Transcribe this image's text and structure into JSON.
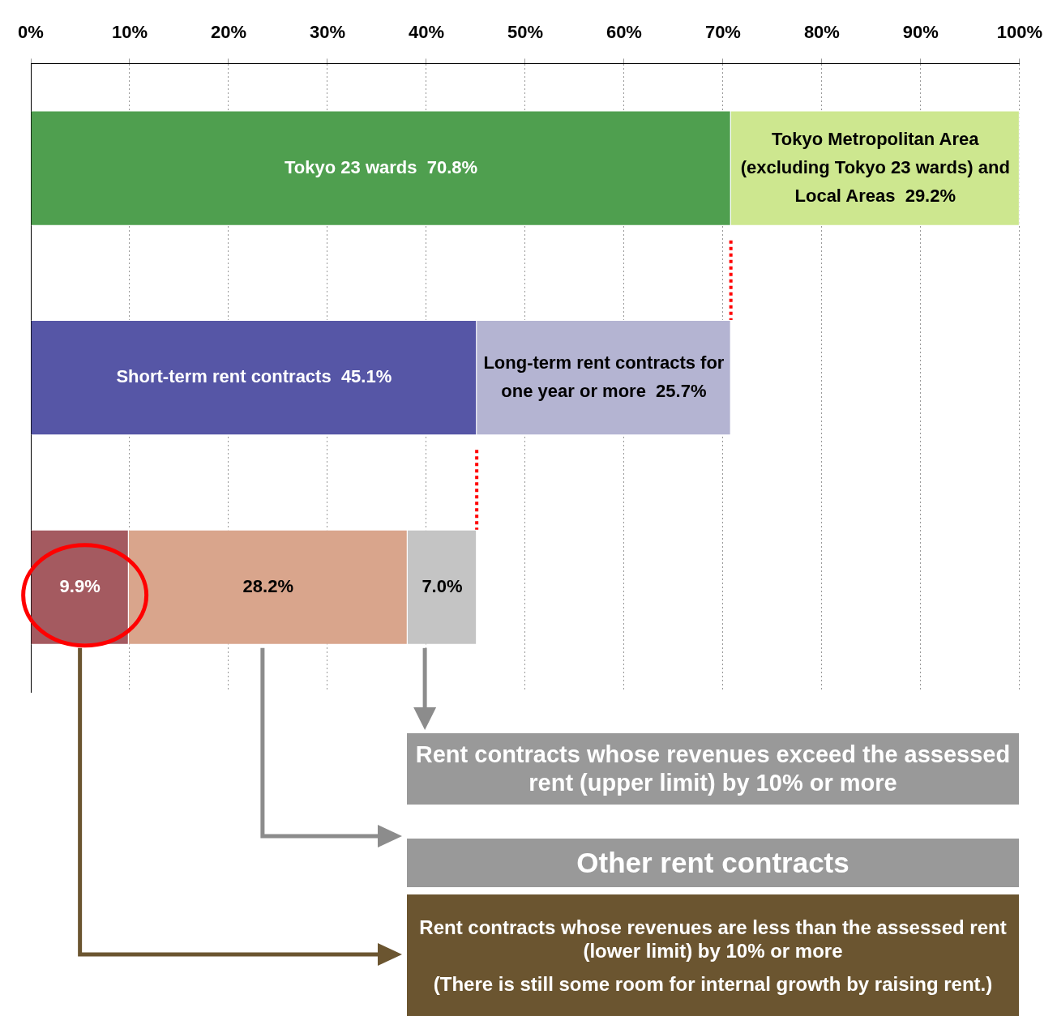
{
  "chart_data": {
    "type": "bar",
    "orientation": "horizontal",
    "stacked": true,
    "categories": [
      null,
      null,
      null
    ],
    "series": [
      {
        "name": "Tokyo 23 wards",
        "color": "#4f9f4f",
        "values": [
          70.8,
          null,
          null
        ],
        "value_labels": [
          "70.8%",
          null,
          null
        ]
      },
      {
        "name": "Tokyo Metropolitan Area (excluding Tokyo 23 wards) and Local Areas",
        "color": "#cde78f",
        "values": [
          29.2,
          null,
          null
        ],
        "value_labels": [
          "29.2%",
          null,
          null
        ]
      },
      {
        "name": "Short-term rent contracts",
        "color": "#5656a6",
        "values": [
          null,
          45.1,
          null
        ],
        "value_labels": [
          null,
          "45.1%",
          null
        ]
      },
      {
        "name": "Long-term rent contracts for one year or more",
        "color": "#b4b4d2",
        "values": [
          null,
          25.7,
          null
        ],
        "value_labels": [
          null,
          "25.7%",
          null
        ]
      },
      {
        "color": "#a45a60",
        "values": [
          null,
          null,
          9.9
        ],
        "value_labels": [
          null,
          null,
          "9.9%"
        ]
      },
      {
        "color": "#d9a58c",
        "values": [
          null,
          null,
          28.2
        ],
        "value_labels": [
          null,
          null,
          "28.2%"
        ]
      },
      {
        "color": "#c4c4c4",
        "values": [
          null,
          null,
          7.0
        ],
        "value_labels": [
          null,
          null,
          "7.0%"
        ]
      }
    ],
    "xlim": [
      0,
      100
    ],
    "xticks": [
      {
        "value": 0,
        "label": "0%"
      },
      {
        "value": 10,
        "label": "10%"
      },
      {
        "value": 20,
        "label": "20%"
      },
      {
        "value": 30,
        "label": "30%"
      },
      {
        "value": 40,
        "label": "40%"
      },
      {
        "value": 50,
        "label": "50%"
      },
      {
        "value": 60,
        "label": "60%"
      },
      {
        "value": 70,
        "label": "70%"
      },
      {
        "value": 80,
        "label": "80%"
      },
      {
        "value": 90,
        "label": "90%"
      },
      {
        "value": 100,
        "label": "100%"
      }
    ],
    "ref_lines": [
      {
        "axis": "x",
        "value": 70.8,
        "color": "#ff0000",
        "line_style": "dotted"
      },
      {
        "axis": "x",
        "value": 45.1,
        "color": "#ff0000",
        "line_style": "dotted"
      }
    ],
    "grid": "x",
    "tick_labels": "x",
    "legend": false,
    "annotations": [
      "Rent contracts whose revenues exceed the assessed rent (upper limit) by 10% or more",
      "Other rent contracts",
      "Rent contracts whose revenues are less than the assessed rent (lower limit) by 10% or more",
      "(There is still some room for internal growth by raising rent.)"
    ]
  }
}
